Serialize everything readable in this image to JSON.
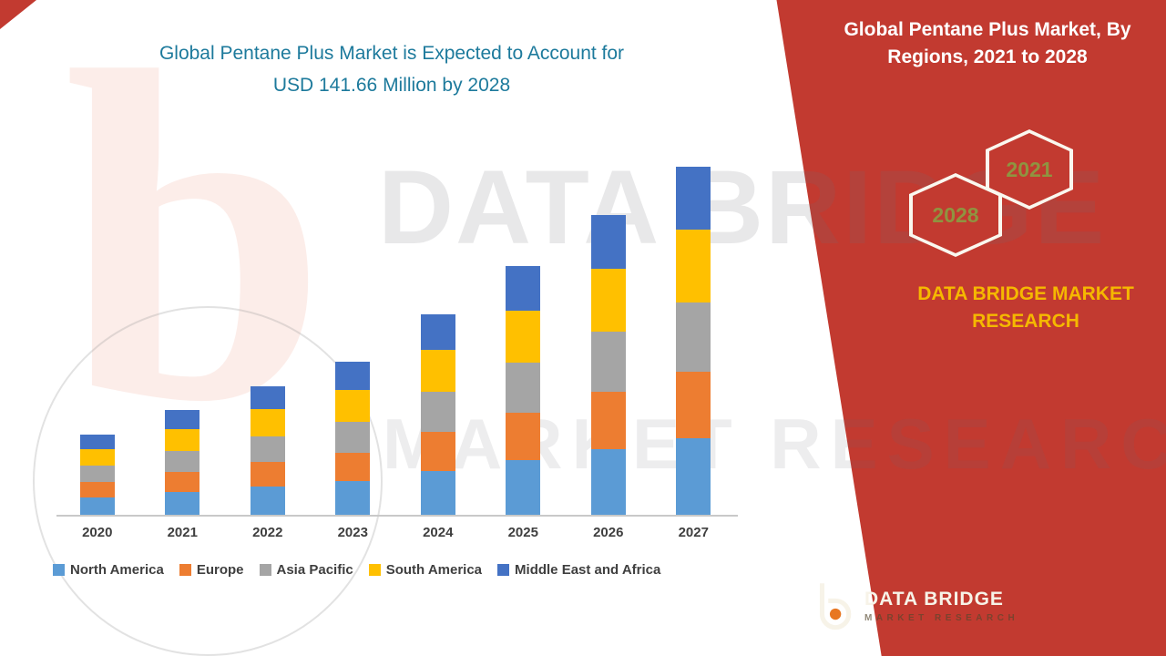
{
  "theme": {
    "accent": "#c23a30",
    "title_color": "#1d7a9c",
    "brand_gold": "#f5b800",
    "hex_number_color": "#8f9440"
  },
  "header": {
    "title_line1": "Global Pentane Plus Market is Expected to Account for",
    "title_line2": "USD 141.66 Million by 2028"
  },
  "right_panel": {
    "heading_line1": "Global Pentane Plus Market, By",
    "heading_line2": "Regions, 2021 to 2028",
    "hexagon_left_label": "2028",
    "hexagon_right_label": "2021",
    "brand_text": "DATA BRIDGE MARKET RESEARCH"
  },
  "watermark": {
    "line1": "DATA BRIDGE",
    "line2": "MARKET RESEARCH",
    "left_glyph": "b"
  },
  "footer_logo": {
    "brand": "DATA BRIDGE",
    "tagline": "MARKET RESEARCH"
  },
  "chart_data": {
    "type": "bar",
    "stacked": true,
    "title": "Global Pentane Plus Market is Expected to Account for USD 141.66 Million by 2028",
    "unit": "USD Million",
    "categories": [
      "2020",
      "2021",
      "2022",
      "2023",
      "2024",
      "2025",
      "2026",
      "2027"
    ],
    "series": [
      {
        "name": "North America",
        "color": "#5b9bd5",
        "values": [
          6.6,
          8.6,
          10.6,
          12.5,
          16.5,
          20.5,
          24.6,
          28.6
        ]
      },
      {
        "name": "Europe",
        "color": "#ed7d31",
        "values": [
          5.7,
          7.4,
          9.1,
          10.8,
          14.3,
          17.7,
          21.3,
          24.7
        ]
      },
      {
        "name": "Asia Pacific",
        "color": "#a5a5a5",
        "values": [
          6.0,
          7.8,
          9.6,
          11.4,
          15.0,
          18.6,
          22.4,
          26.0
        ]
      },
      {
        "name": "South America",
        "color": "#ffc000",
        "values": [
          6.3,
          8.2,
          10.1,
          12.0,
          15.8,
          19.5,
          23.5,
          27.3
        ]
      },
      {
        "name": "Middle East and Africa",
        "color": "#4472c4",
        "values": [
          5.4,
          7.0,
          8.6,
          10.3,
          13.4,
          16.7,
          20.2,
          23.4
        ]
      }
    ],
    "estimated_totals": [
      30,
      39,
      48,
      57,
      75,
      93,
      112,
      130
    ],
    "ylim": [
      0,
      140
    ],
    "y_axis_visible": false,
    "gridlines": false,
    "legend_position": "bottom"
  }
}
